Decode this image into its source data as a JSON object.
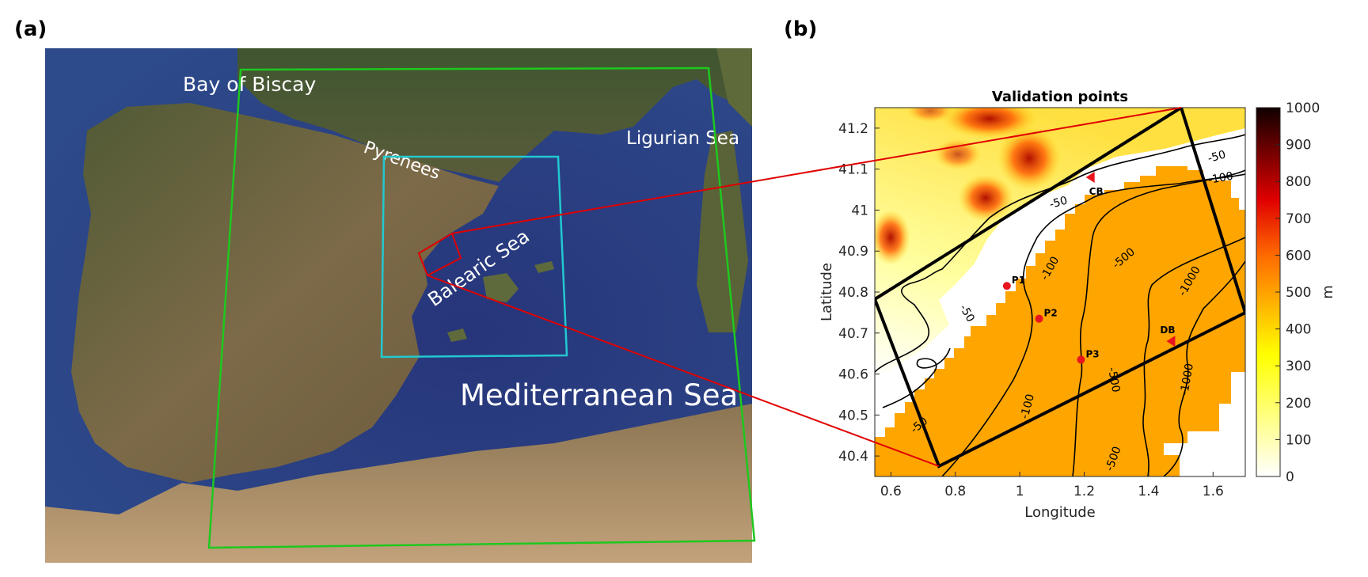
{
  "panels": {
    "a": {
      "label": "(a)",
      "place_names": {
        "bay_of_biscay": "Bay of Biscay",
        "pyrenees": "Pyrenees",
        "ligurian_sea": "Ligurian Sea",
        "balearic_sea": "Balearic Sea",
        "mediterranean_sea": "Mediterranean Sea"
      },
      "domain_colors": {
        "outer": "#1ec81e",
        "inner": "#22c8d0",
        "study_area": "#e00000"
      }
    },
    "b": {
      "label": "(b)",
      "title": "Validation points",
      "xlabel": "Longitude",
      "ylabel": "Latitude",
      "xlim": [
        0.55,
        1.7
      ],
      "ylim": [
        40.35,
        41.25
      ],
      "xticks": [
        0.6,
        0.8,
        1,
        1.2,
        1.4,
        1.6
      ],
      "xtick_labels": [
        "0.6",
        "0.8",
        "1",
        "1.2",
        "1.4",
        "1.6"
      ],
      "yticks": [
        40.4,
        40.5,
        40.6,
        40.7,
        40.8,
        40.9,
        41,
        41.1,
        41.2
      ],
      "ytick_labels": [
        "40.4",
        "40.5",
        "40.6",
        "40.7",
        "40.8",
        "40.9",
        "41",
        "41.1",
        "41.2"
      ],
      "colorbar": {
        "label": "m",
        "range": [
          0,
          1000
        ],
        "ticks": [
          0,
          100,
          200,
          300,
          400,
          500,
          600,
          700,
          800,
          900,
          1000
        ],
        "tick_labels": [
          "0",
          "100",
          "200",
          "300",
          "400",
          "500",
          "600",
          "700",
          "800",
          "900",
          "1000"
        ],
        "colormap": "hot (reversed)"
      },
      "points": [
        {
          "label": "P1",
          "lon": 0.96,
          "lat": 40.815,
          "marker": "circle"
        },
        {
          "label": "P2",
          "lon": 1.06,
          "lat": 40.735,
          "marker": "circle"
        },
        {
          "label": "P3",
          "lon": 1.19,
          "lat": 40.635,
          "marker": "circle"
        },
        {
          "label": "CB",
          "lon": 1.22,
          "lat": 41.08,
          "marker": "triangle"
        },
        {
          "label": "DB",
          "lon": 1.47,
          "lat": 40.68,
          "marker": "triangle"
        }
      ],
      "contour_labels": [
        "-50",
        "-100",
        "-50",
        "-50",
        "-50",
        "-100",
        "-500",
        "-1000",
        "-100",
        "-500",
        "-1000",
        "-500"
      ],
      "point_color": "#e8141e",
      "sea_mask_color": "#ffa500"
    }
  }
}
